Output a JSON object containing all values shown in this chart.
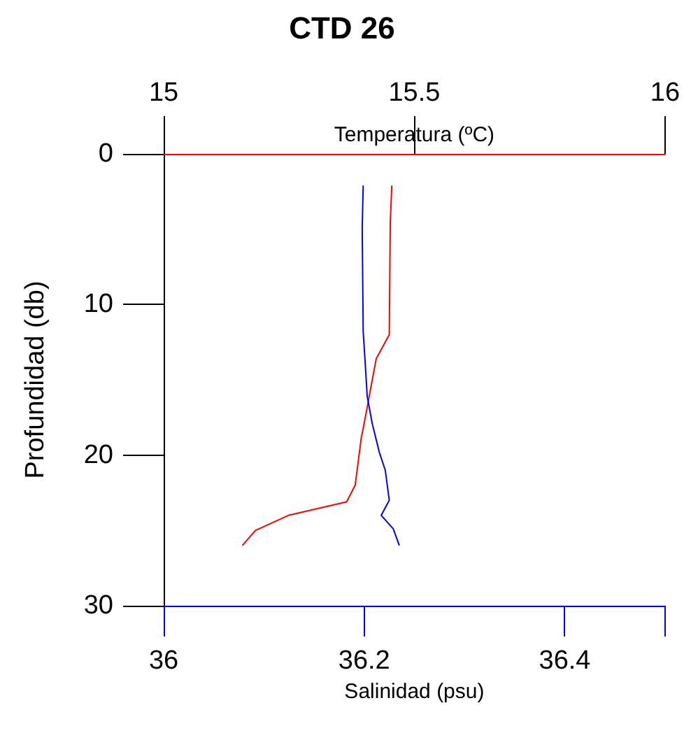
{
  "chart_data": {
    "type": "line",
    "title": "CTD 26",
    "xlabel": "Salinidad (psu)",
    "x2label": "Temperatura (ºC)",
    "ylabel": "Profundidad (db)",
    "xlim": [
      36,
      36.5
    ],
    "xticks": [
      36,
      36.2,
      36.4
    ],
    "x2lim": [
      15,
      16
    ],
    "x2ticks": [
      15,
      15.5,
      16
    ],
    "ylim": [
      30,
      0
    ],
    "yticks": [
      0,
      10,
      20,
      30
    ],
    "marker": "none",
    "line_style": "solid",
    "series": [
      {
        "color": "#ff0000",
        "axis": "x2",
        "x": [
          15.455,
          15.452,
          15.45,
          15.424,
          15.415,
          15.405,
          15.394,
          15.382,
          15.365,
          15.249,
          15.183,
          15.157
        ],
        "values": [
          2.1,
          4.6,
          12.0,
          13.6,
          15.2,
          17.0,
          18.9,
          22.0,
          23.1,
          24.0,
          25.0,
          26.0
        ]
      },
      {
        "color": "#0000ff",
        "x": [
          36.199,
          36.198,
          36.199,
          36.201,
          36.203,
          36.208,
          36.215,
          36.221,
          36.225,
          36.217,
          36.229,
          36.235
        ],
        "values": [
          2.1,
          4.9,
          11.8,
          13.9,
          16.1,
          17.9,
          19.8,
          21.0,
          23.0,
          24.0,
          24.9,
          26.0
        ]
      }
    ]
  }
}
